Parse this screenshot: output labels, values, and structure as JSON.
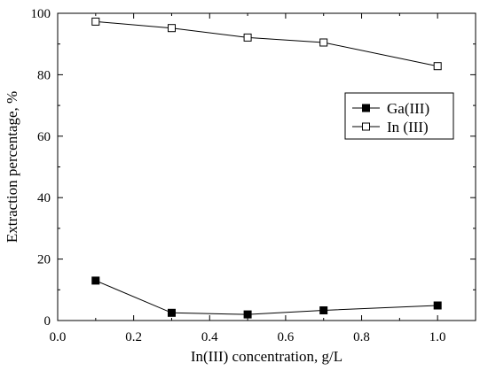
{
  "chart_data": {
    "type": "line",
    "xlabel": "In(III) concentration, g/L",
    "ylabel": "Extraction percentage, %",
    "xlim": [
      0.0,
      1.1
    ],
    "ylim": [
      0,
      100
    ],
    "x_ticks": [
      "0.0",
      "0.2",
      "0.4",
      "0.6",
      "0.8",
      "1.0"
    ],
    "y_ticks": [
      "0",
      "20",
      "40",
      "60",
      "80",
      "100"
    ],
    "grid": false,
    "legend_position": "right, upper-middle",
    "series": [
      {
        "name": "Ga(III)",
        "marker": "filled-square",
        "x": [
          0.1,
          0.3,
          0.5,
          0.7,
          1.0
        ],
        "y": [
          13.0,
          2.5,
          2.0,
          3.3,
          4.9
        ]
      },
      {
        "name": "In (III)",
        "marker": "open-square",
        "x": [
          0.1,
          0.3,
          0.5,
          0.7,
          1.0
        ],
        "y": [
          97.3,
          95.2,
          92.1,
          90.5,
          82.8
        ]
      }
    ]
  }
}
